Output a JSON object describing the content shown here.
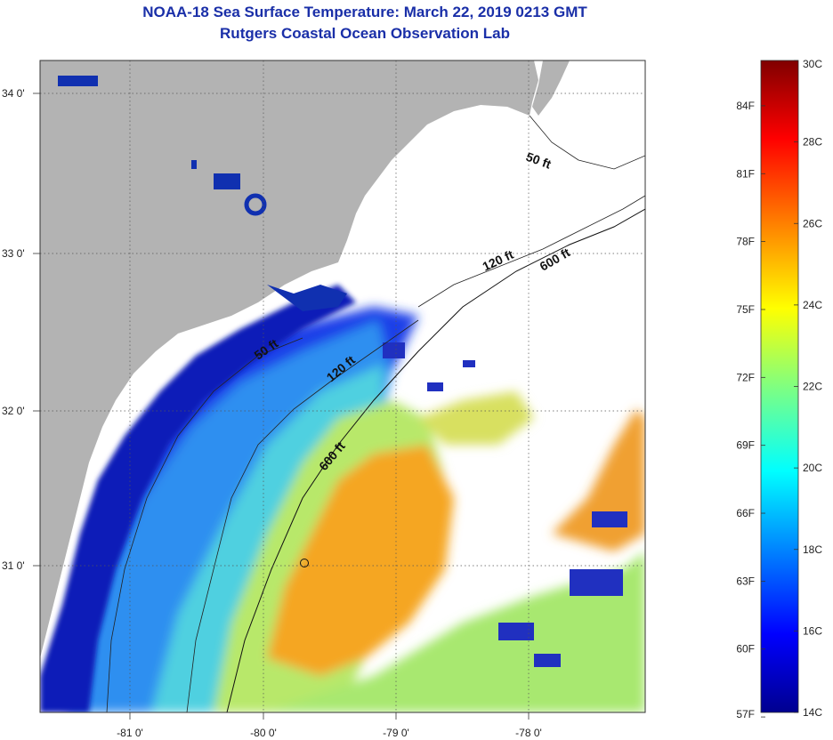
{
  "header": {
    "title": "NOAA-18 Sea Surface Temperature:  March 22, 2019 0213 GMT",
    "subtitle": "Rutgers Coastal Ocean Observation Lab"
  },
  "axes": {
    "longitude_labels": [
      "-81 0'",
      "-80 0'",
      "-79 0'",
      "-78 0'"
    ],
    "latitude_labels": [
      "34 0'",
      "33 0'",
      "32 0'",
      "31 0'"
    ]
  },
  "contours": {
    "labels": [
      "50 ft",
      "120 ft",
      "600 ft",
      "50 ft",
      "120 ft",
      "600 ft"
    ]
  },
  "colorbar": {
    "celsius": [
      "30C",
      "28C",
      "26C",
      "24C",
      "22C",
      "20C",
      "18C",
      "16C",
      "14C"
    ],
    "fahrenheit": [
      "84F",
      "81F",
      "78F",
      "75F",
      "72F",
      "69F",
      "66F",
      "63F",
      "60F",
      "57F"
    ],
    "colors": [
      "#00008f",
      "#0000ff",
      "#0080ff",
      "#00ffff",
      "#80ff80",
      "#ffff00",
      "#ff8000",
      "#ff0000",
      "#800000"
    ]
  },
  "colors": {
    "land": "#b3b3b3",
    "no_data": "#ffffff",
    "title": "#1a2fa8"
  }
}
